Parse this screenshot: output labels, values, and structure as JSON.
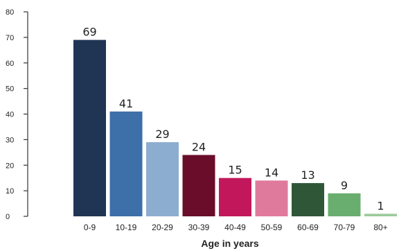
{
  "chart_data": {
    "type": "bar",
    "title": "",
    "xlabel": "Age in years",
    "ylabel": "",
    "ylim": [
      0,
      80
    ],
    "yticks": [
      0,
      10,
      20,
      30,
      40,
      50,
      60,
      70,
      80
    ],
    "grid": false,
    "categories": [
      "0-9",
      "10-19",
      "20-29",
      "30-39",
      "40-49",
      "50-59",
      "60-69",
      "70-79",
      "80+"
    ],
    "values": [
      69,
      41,
      29,
      24,
      15,
      14,
      13,
      9,
      1
    ],
    "colors": [
      "#1f3553",
      "#3d6fa8",
      "#8cadd0",
      "#6a0d2a",
      "#c2185b",
      "#e07a9c",
      "#2f5737",
      "#6aae6f",
      "#9ccb9c"
    ]
  }
}
